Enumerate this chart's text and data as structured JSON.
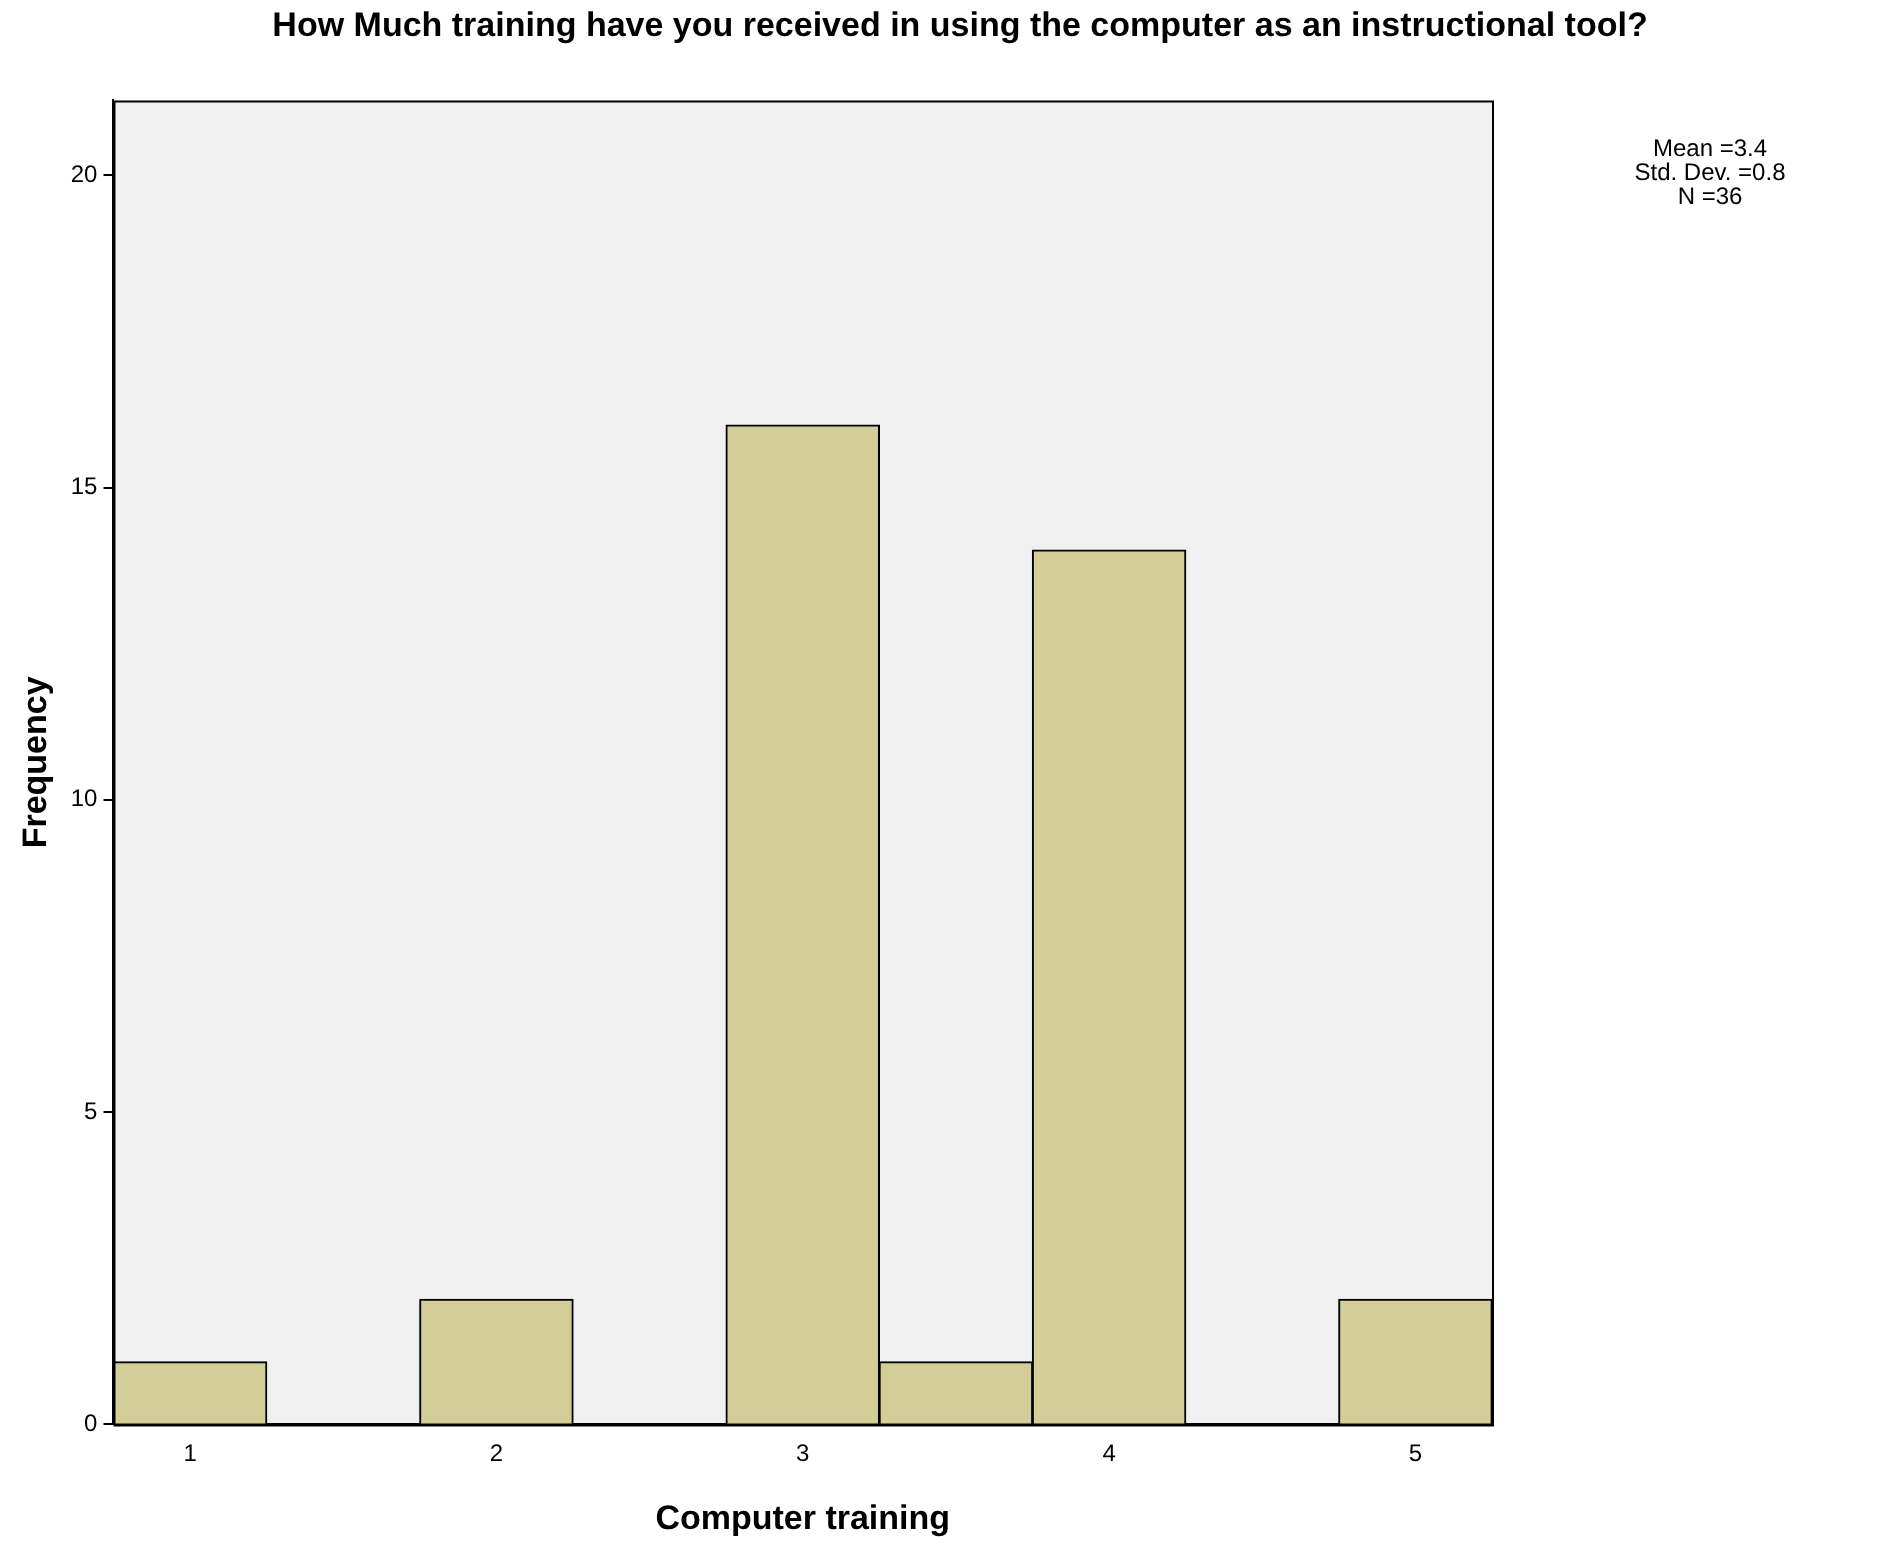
{
  "chart_data": {
    "type": "histogram",
    "title": "How Much training have you received in using the computer as an instructional tool?",
    "xlabel": "Computer training",
    "ylabel": "Frequency",
    "bins": [
      0.75,
      1.25,
      1.75,
      2.25,
      2.75,
      3.25,
      3.75,
      4.25,
      4.75,
      5.25
    ],
    "values": [
      1,
      0,
      2,
      0,
      16,
      1,
      14,
      0,
      2
    ],
    "color": "#d3ce97",
    "xlim": [
      0.75,
      5.25
    ],
    "xticks": [
      1,
      2,
      3,
      4,
      5
    ],
    "ylim": [
      0,
      21.2
    ],
    "yticks": [
      0,
      5,
      10,
      15,
      20
    ],
    "grid": false,
    "legend": false,
    "annotations": [
      "Mean =3.4",
      "Std. Dev. =0.8",
      "N =36"
    ]
  }
}
